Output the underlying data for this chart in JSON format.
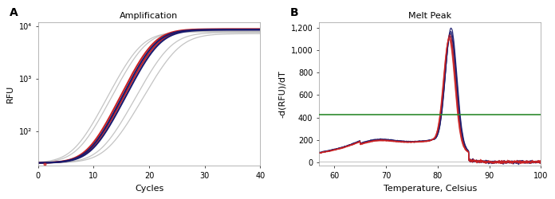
{
  "amp_title": "Amplification",
  "amp_xlabel": "Cycles",
  "amp_ylabel": "RFU",
  "amp_xlim": [
    0,
    40
  ],
  "amp_ylim_log": [
    22,
    12000
  ],
  "amp_yticks": [
    100,
    1000,
    10000
  ],
  "amp_ytick_labels": [
    "10²",
    "10³",
    "10⁴"
  ],
  "amp_xticks": [
    0,
    10,
    20,
    30,
    40
  ],
  "melt_title": "Melt Peak",
  "melt_xlabel": "Temperature, Celsius",
  "melt_ylabel": "-d(RFU)/dT",
  "melt_xlim": [
    57,
    100
  ],
  "melt_ylim": [
    -30,
    1250
  ],
  "melt_yticks": [
    0,
    200,
    400,
    600,
    800,
    1000,
    1200
  ],
  "melt_ytick_labels": [
    "0",
    "200",
    "400",
    "600",
    "800",
    "1,000",
    "1,200"
  ],
  "melt_xticks": [
    60,
    70,
    80,
    90,
    100
  ],
  "melt_threshold": 425,
  "color_red": "#cc2222",
  "color_navy": "#1a1a6e",
  "color_gray": "#b0b0b0",
  "color_green": "#2d8a2d",
  "color_light_gray": "#c8c8c8",
  "background": "#ffffff"
}
